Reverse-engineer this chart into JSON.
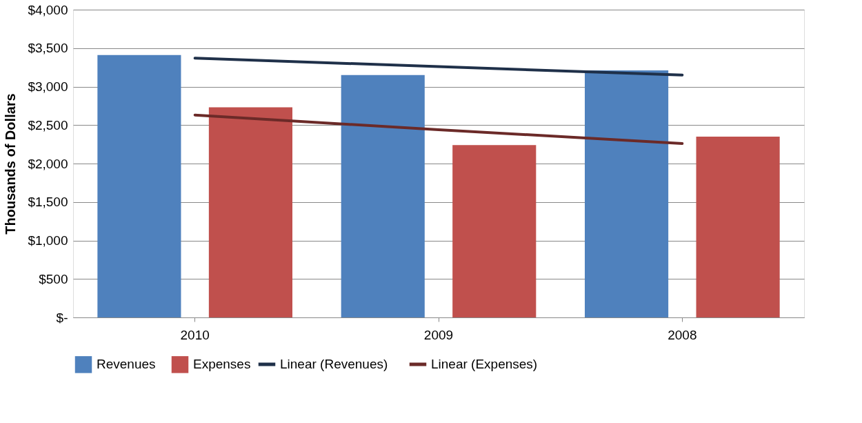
{
  "chart_data": {
    "type": "bar",
    "ylabel": "Thousands of Dollars",
    "categories": [
      "2010",
      "2009",
      "2008"
    ],
    "series": [
      {
        "name": "Revenues",
        "color": "#4f81bd",
        "values": [
          3410,
          3150,
          3210
        ]
      },
      {
        "name": "Expenses",
        "color": "#c0504d",
        "values": [
          2730,
          2240,
          2350
        ]
      },
      {
        "name": "Linear (Revenues)",
        "type": "line",
        "color": "#1f3049",
        "values": [
          3370,
          3260,
          3150
        ]
      },
      {
        "name": "Linear (Expenses)",
        "type": "line",
        "color": "#6b2a28",
        "values": [
          2630,
          2440,
          2260
        ]
      }
    ],
    "ylim": [
      0,
      4000
    ],
    "yticks": [
      {
        "value": 0,
        "label": "$-"
      },
      {
        "value": 500,
        "label": "$500"
      },
      {
        "value": 1000,
        "label": "$1,000"
      },
      {
        "value": 1500,
        "label": "$1,500"
      },
      {
        "value": 2000,
        "label": "$2,000"
      },
      {
        "value": 2500,
        "label": "$2,500"
      },
      {
        "value": 3000,
        "label": "$3,000"
      },
      {
        "value": 3500,
        "label": "$3,500"
      },
      {
        "value": 4000,
        "label": "$4,000"
      }
    ],
    "grid": "y",
    "legend": "bottom"
  }
}
